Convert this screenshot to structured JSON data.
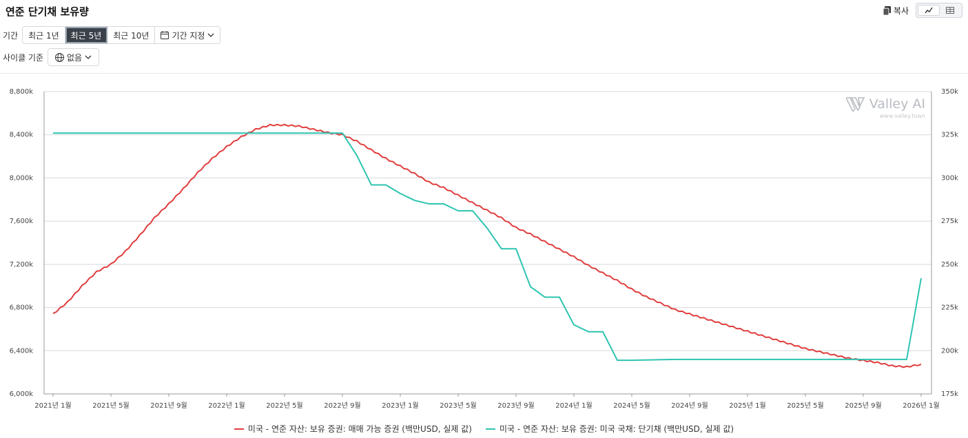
{
  "header": {
    "title": "연준 단기채 보유량",
    "copy_label": "복사"
  },
  "filters": {
    "period_label": "기간",
    "period_options": [
      "최근 1년",
      "최근 5년",
      "최근 10년"
    ],
    "active_period": "최근 5년",
    "custom_period_label": "기간 지정",
    "cycle_label": "사이클 기준",
    "cycle_value": "없음"
  },
  "watermark": {
    "name": "Valley AI",
    "url": "www.valley.town"
  },
  "colors": {
    "series1": "#e03c3c",
    "series2": "#2cc4b0"
  },
  "chart_data": {
    "type": "line",
    "x_tick_labels": [
      "2021년 1월",
      "2021년 5월",
      "2021년 9월",
      "2022년 1월",
      "2022년 5월",
      "2022년 9월",
      "2023년 1월",
      "2023년 5월",
      "2023년 9월",
      "2024년 1월",
      "2024년 5월",
      "2024년 9월",
      "2025년 1월",
      "2025년 5월",
      "2025년 9월",
      "2026년 1월"
    ],
    "x_range": [
      "2021-01",
      "2026-01"
    ],
    "y_left": {
      "min": 6000,
      "max": 8800,
      "ticks": [
        "6,000k",
        "6,400k",
        "6,800k",
        "7,200k",
        "7,600k",
        "8,000k",
        "8,400k",
        "8,800k"
      ]
    },
    "y_right": {
      "min": 175,
      "max": 350,
      "ticks": [
        "175k",
        "200k",
        "225k",
        "250k",
        "275k",
        "300k",
        "325k",
        "350k"
      ]
    },
    "grid": true,
    "legend_position": "bottom",
    "series": [
      {
        "name": "미국 - 연준 자산: 보유 증권: 매매 가능 증권 (백만USD, 실제 값)",
        "axis": "left",
        "points": [
          [
            "2021-01",
            6740
          ],
          [
            "2021-02",
            6850
          ],
          [
            "2021-03",
            7000
          ],
          [
            "2021-04",
            7130
          ],
          [
            "2021-05",
            7200
          ],
          [
            "2021-06",
            7320
          ],
          [
            "2021-07",
            7470
          ],
          [
            "2021-08",
            7630
          ],
          [
            "2021-09",
            7760
          ],
          [
            "2021-10",
            7900
          ],
          [
            "2021-11",
            8050
          ],
          [
            "2021-12",
            8180
          ],
          [
            "2022-01",
            8290
          ],
          [
            "2022-02",
            8380
          ],
          [
            "2022-03",
            8450
          ],
          [
            "2022-04",
            8490
          ],
          [
            "2022-05",
            8490
          ],
          [
            "2022-06",
            8480
          ],
          [
            "2022-07",
            8450
          ],
          [
            "2022-08",
            8420
          ],
          [
            "2022-09",
            8400
          ],
          [
            "2022-10",
            8340
          ],
          [
            "2022-11",
            8260
          ],
          [
            "2022-12",
            8180
          ],
          [
            "2023-01",
            8110
          ],
          [
            "2023-02",
            8040
          ],
          [
            "2023-03",
            7960
          ],
          [
            "2023-04",
            7910
          ],
          [
            "2023-05",
            7840
          ],
          [
            "2023-06",
            7770
          ],
          [
            "2023-07",
            7700
          ],
          [
            "2023-08",
            7630
          ],
          [
            "2023-09",
            7540
          ],
          [
            "2023-10",
            7480
          ],
          [
            "2023-11",
            7410
          ],
          [
            "2023-12",
            7340
          ],
          [
            "2024-01",
            7270
          ],
          [
            "2024-02",
            7190
          ],
          [
            "2024-03",
            7120
          ],
          [
            "2024-04",
            7050
          ],
          [
            "2024-05",
            6970
          ],
          [
            "2024-06",
            6900
          ],
          [
            "2024-07",
            6840
          ],
          [
            "2024-08",
            6780
          ],
          [
            "2024-09",
            6740
          ],
          [
            "2024-10",
            6700
          ],
          [
            "2024-11",
            6660
          ],
          [
            "2024-12",
            6620
          ],
          [
            "2025-01",
            6580
          ],
          [
            "2025-02",
            6540
          ],
          [
            "2025-03",
            6500
          ],
          [
            "2025-04",
            6460
          ],
          [
            "2025-05",
            6420
          ],
          [
            "2025-06",
            6390
          ],
          [
            "2025-07",
            6360
          ],
          [
            "2025-08",
            6330
          ],
          [
            "2025-09",
            6310
          ],
          [
            "2025-10",
            6290
          ],
          [
            "2025-11",
            6260
          ],
          [
            "2025-12",
            6250
          ],
          [
            "2026-01",
            6275
          ]
        ]
      },
      {
        "name": "미국 - 연준 자산: 보유 증권: 미국 국채: 단기채 (백만USD, 실제 값)",
        "axis": "right",
        "points": [
          [
            "2021-01",
            326
          ],
          [
            "2022-09",
            326
          ],
          [
            "2022-10",
            313
          ],
          [
            "2022-11",
            296
          ],
          [
            "2022-12",
            296
          ],
          [
            "2023-01",
            291
          ],
          [
            "2023-02",
            287
          ],
          [
            "2023-03",
            285
          ],
          [
            "2023-04",
            285
          ],
          [
            "2023-05",
            281
          ],
          [
            "2023-06",
            281
          ],
          [
            "2023-07",
            271
          ],
          [
            "2023-08",
            259
          ],
          [
            "2023-09",
            259
          ],
          [
            "2023-10",
            237
          ],
          [
            "2023-11",
            231
          ],
          [
            "2023-12",
            231
          ],
          [
            "2024-01",
            215
          ],
          [
            "2024-02",
            211
          ],
          [
            "2024-03",
            211
          ],
          [
            "2024-04",
            194.5
          ],
          [
            "2024-05",
            194.5
          ],
          [
            "2024-08",
            195
          ],
          [
            "2025-12",
            195
          ],
          [
            "2026-01",
            242
          ]
        ]
      }
    ]
  }
}
